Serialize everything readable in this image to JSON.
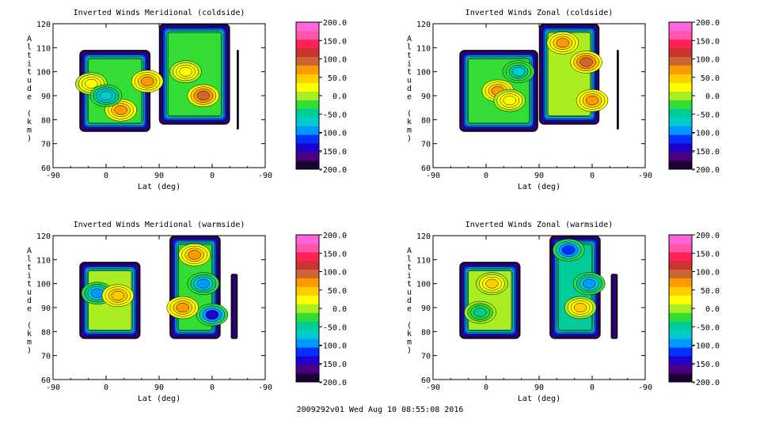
{
  "chart_data": [
    {
      "type": "heatmap",
      "title": "Inverted Winds Meridional (coldside)",
      "xlabel": "Lat (deg)",
      "ylabel": "Altitude (km)",
      "xticks": [
        "-90",
        "0",
        "90",
        "0",
        "-90"
      ],
      "yticks": [
        "60",
        "70",
        "80",
        "90",
        "100",
        "110",
        "120"
      ],
      "ylim": [
        60,
        120
      ],
      "colorbar": {
        "ticks": [
          "200.0",
          "150.0",
          "100.0",
          "50.0",
          "0.0",
          "-50.0",
          "-100.0",
          "-150.0",
          "-200.0"
        ],
        "range": [
          -200,
          200
        ]
      },
      "regions": [
        {
          "lat_range": [
            -45,
            75
          ],
          "alt_range": [
            75,
            109
          ],
          "level": -30
        },
        {
          "lat_range": [
            90,
            210
          ],
          "alt_range": [
            78,
            120
          ],
          "level": -20
        },
        {
          "lat_range": [
            222,
            225
          ],
          "alt_range": [
            76,
            109
          ],
          "level": -130
        }
      ],
      "blobs": [
        {
          "lat": -25,
          "alt": 95,
          "value": 30
        },
        {
          "lat": 25,
          "alt": 84,
          "value": 70
        },
        {
          "lat": 70,
          "alt": 96,
          "value": 60
        },
        {
          "lat": 0,
          "alt": 90,
          "value": -80
        },
        {
          "lat": 165,
          "alt": 90,
          "value": 85
        },
        {
          "lat": 135,
          "alt": 100,
          "value": 30
        }
      ]
    },
    {
      "type": "heatmap",
      "title": "Inverted Winds Zonal (coldside)",
      "xlabel": "Lat (deg)",
      "ylabel": "Altitude (km)",
      "xticks": [
        "-90",
        "0",
        "90",
        "0",
        "-90"
      ],
      "yticks": [
        "60",
        "70",
        "80",
        "90",
        "100",
        "110",
        "120"
      ],
      "ylim": [
        60,
        120
      ],
      "colorbar": {
        "ticks": [
          "200.0",
          "150.0",
          "100.0",
          "50.0",
          "0.0",
          "-50.0",
          "-100.0",
          "-150.0",
          "-200.0"
        ],
        "range": [
          -200,
          200
        ]
      },
      "regions": [
        {
          "lat_range": [
            -45,
            88
          ],
          "alt_range": [
            75,
            109
          ],
          "level": -20
        },
        {
          "lat_range": [
            90,
            192
          ],
          "alt_range": [
            78,
            120
          ],
          "level": 10
        },
        {
          "lat_range": [
            222,
            225
          ],
          "alt_range": [
            76,
            109
          ],
          "level": -180
        }
      ],
      "blobs": [
        {
          "lat": 20,
          "alt": 92,
          "value": 60
        },
        {
          "lat": 40,
          "alt": 88,
          "value": 30
        },
        {
          "lat": 170,
          "alt": 104,
          "value": 100
        },
        {
          "lat": 130,
          "alt": 112,
          "value": 60
        },
        {
          "lat": 55,
          "alt": 100,
          "value": -60
        },
        {
          "lat": 180,
          "alt": 88,
          "value": 70
        }
      ]
    },
    {
      "type": "heatmap",
      "title": "Inverted Winds Meridional (warmside)",
      "xlabel": "Lat (deg)",
      "ylabel": "Altitude (km)",
      "xticks": [
        "-90",
        "0",
        "90",
        "0",
        "-90"
      ],
      "yticks": [
        "60",
        "70",
        "80",
        "90",
        "100",
        "110",
        "120"
      ],
      "ylim": [
        60,
        120
      ],
      "colorbar": {
        "ticks": [
          "200.0",
          "150.0",
          "100.0",
          "50.0",
          "0.0",
          "-50.0",
          "-100.0",
          "-150.0",
          "-200.0"
        ],
        "range": [
          -200,
          200
        ]
      },
      "regions": [
        {
          "lat_range": [
            -45,
            58
          ],
          "alt_range": [
            77,
            109
          ],
          "level": 0
        },
        {
          "lat_range": [
            108,
            194
          ],
          "alt_range": [
            77,
            120
          ],
          "level": -20
        },
        {
          "lat_range": [
            212,
            223
          ],
          "alt_range": [
            77,
            104
          ],
          "level": -30
        }
      ],
      "blobs": [
        {
          "lat": -15,
          "alt": 96,
          "value": -90
        },
        {
          "lat": 20,
          "alt": 95,
          "value": 50
        },
        {
          "lat": 150,
          "alt": 112,
          "value": 70
        },
        {
          "lat": 165,
          "alt": 100,
          "value": -90
        },
        {
          "lat": 180,
          "alt": 87,
          "value": -130
        },
        {
          "lat": 130,
          "alt": 90,
          "value": 70
        }
      ]
    },
    {
      "type": "heatmap",
      "title": "Inverted Winds Zonal (warmside)",
      "xlabel": "Lat (deg)",
      "ylabel": "Altitude (km)",
      "xticks": [
        "-90",
        "0",
        "90",
        "0",
        "-90"
      ],
      "yticks": [
        "60",
        "70",
        "80",
        "90",
        "100",
        "110",
        "120"
      ],
      "ylim": [
        60,
        120
      ],
      "colorbar": {
        "ticks": [
          "200.0",
          "150.0",
          "100.0",
          "50.0",
          "0.0",
          "-50.0",
          "-100.0",
          "-150.0",
          "-200.0"
        ],
        "range": [
          -200,
          200
        ]
      },
      "regions": [
        {
          "lat_range": [
            -45,
            58
          ],
          "alt_range": [
            77,
            109
          ],
          "level": -10
        },
        {
          "lat_range": [
            108,
            194
          ],
          "alt_range": [
            77,
            120
          ],
          "level": -40
        },
        {
          "lat_range": [
            212,
            223
          ],
          "alt_range": [
            77,
            104
          ],
          "level": -40
        }
      ],
      "blobs": [
        {
          "lat": 10,
          "alt": 100,
          "value": 40
        },
        {
          "lat": -10,
          "alt": 88,
          "value": -40
        },
        {
          "lat": 140,
          "alt": 114,
          "value": -120
        },
        {
          "lat": 175,
          "alt": 100,
          "value": -100
        },
        {
          "lat": 160,
          "alt": 90,
          "value": 40
        }
      ]
    }
  ],
  "footer": "2009292v01 Wed Aug 10 08:55:08 2016",
  "colors": {
    "colorscale": [
      "#1a0033",
      "#4b0082",
      "#2000cc",
      "#0033ff",
      "#0099ff",
      "#00cccc",
      "#00cc99",
      "#33dd33",
      "#aaee22",
      "#ffff00",
      "#ffcc00",
      "#ff9900",
      "#cc6633",
      "#cc3333",
      "#ff2255",
      "#ff55aa",
      "#ff66dd"
    ],
    "background": "#ffffff",
    "axis": "#000000"
  }
}
